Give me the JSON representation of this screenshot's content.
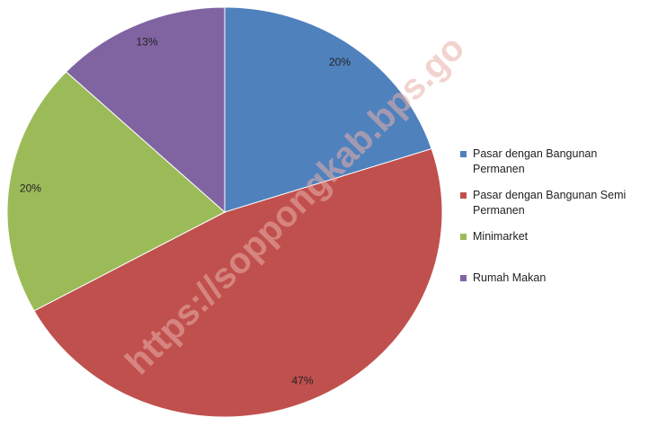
{
  "chart_data": {
    "type": "pie",
    "categories": [
      "Pasar dengan Bangunan Permanen",
      "Pasar dengan Bangunan Semi Permanen",
      "Minimarket",
      "Rumah Makan"
    ],
    "values": [
      20,
      47,
      20,
      13
    ],
    "colors": [
      "#4f81bd",
      "#c0504d",
      "#9bbb59",
      "#8064a2"
    ],
    "legend": "right"
  },
  "watermark": "https://soppongkab.bps.go"
}
